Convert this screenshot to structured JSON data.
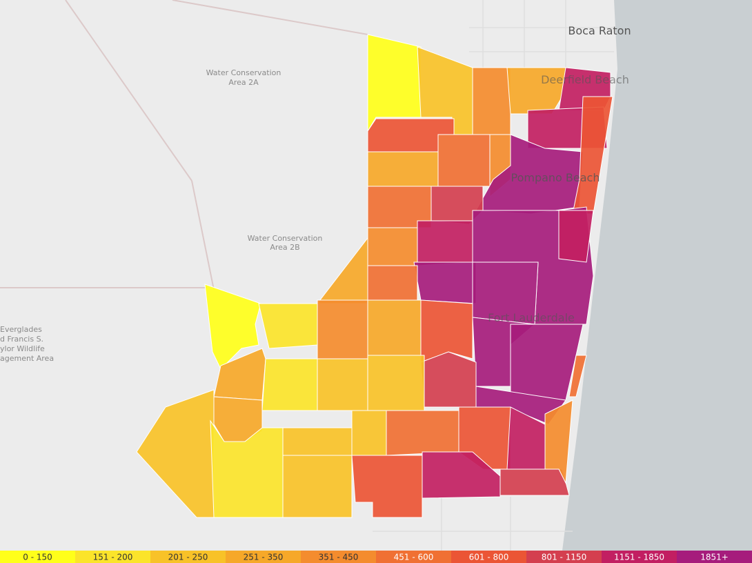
{
  "map_labels": {
    "boca_raton": "Boca Raton",
    "deerfield_beach": "Deerfield Beach",
    "pompano_beach": "Pompano Beach",
    "fort_lauderdale": "Fort Lauderdale",
    "area_2a": [
      "Water Conservation",
      "Area 2A"
    ],
    "area_2b": [
      "Water Conservation",
      "Area 2B"
    ],
    "everglades": [
      "Everglades",
      "d Francis S.",
      "ylor Wildlife",
      "agement Area"
    ]
  },
  "legend": {
    "classes": [
      {
        "label": "0 - 150",
        "color": "#ffff1a"
      },
      {
        "label": "151 - 200",
        "color": "#fbe42a"
      },
      {
        "label": "201 - 250",
        "color": "#f8c228"
      },
      {
        "label": "251 - 350",
        "color": "#f6a829"
      },
      {
        "label": "351 - 450",
        "color": "#f48c2e"
      },
      {
        "label": "451 - 600",
        "color": "#f07033"
      },
      {
        "label": "601 - 800",
        "color": "#eb5535"
      },
      {
        "label": "801 - 1150",
        "color": "#d43f4f"
      },
      {
        "label": "1151 - 1850",
        "color": "#c21f62"
      },
      {
        "label": "1851+",
        "color": "#a61c7c"
      }
    ]
  }
}
